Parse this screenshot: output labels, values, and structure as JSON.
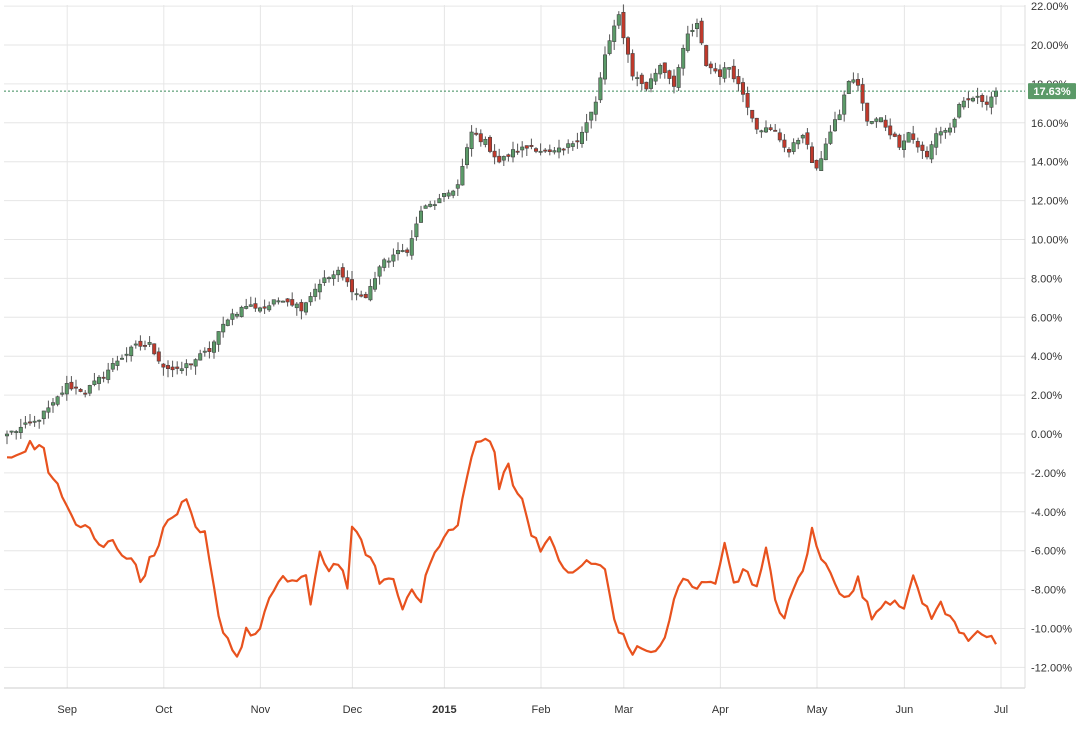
{
  "chart_data": {
    "type": "candlestick+line",
    "title": "",
    "xlabel": "",
    "ylabel": "",
    "ylim": [
      -12.5,
      22.2
    ],
    "y_ticks": [
      "22.00%",
      "20.00%",
      "18.00%",
      "16.00%",
      "14.00%",
      "12.00%",
      "10.00%",
      "8.00%",
      "6.00%",
      "4.00%",
      "2.00%",
      "0.00%",
      "-2.00%",
      "-4.00%",
      "-6.00%",
      "-8.00%",
      "-10.00%",
      "-12.00%"
    ],
    "y_tick_values": [
      22,
      20,
      18,
      16,
      14,
      12,
      10,
      8,
      6,
      4,
      2,
      0,
      -2,
      -4,
      -6,
      -8,
      -10,
      -12
    ],
    "x_ticks": [
      "Sep",
      "Oct",
      "Nov",
      "Dec",
      "2015",
      "Feb",
      "Mar",
      "Apr",
      "May",
      "Jun",
      "Jul"
    ],
    "x_tick_positions": [
      7,
      28,
      49,
      69,
      89,
      110,
      128,
      149,
      170,
      189,
      210
    ],
    "x_bold_tick": "2015",
    "n_days": 216,
    "last_value_label": "17.63%",
    "last_value": 17.63,
    "grid": true,
    "series": [
      {
        "kind": "candlestick",
        "color_up": "#5b9a68",
        "color_down": "#c0392b",
        "anchors": [
          [
            0,
            0
          ],
          [
            6,
            0.6
          ],
          [
            10,
            1.5
          ],
          [
            13,
            2.5
          ],
          [
            17,
            2.2
          ],
          [
            20,
            2.8
          ],
          [
            24,
            3.8
          ],
          [
            28,
            4.5
          ],
          [
            31,
            4.6
          ],
          [
            34,
            3.5
          ],
          [
            37,
            3.2
          ],
          [
            40,
            3.7
          ],
          [
            44,
            4.3
          ],
          [
            48,
            6.0
          ],
          [
            52,
            6.6
          ],
          [
            56,
            6.5
          ],
          [
            60,
            7.0
          ],
          [
            64,
            6.5
          ],
          [
            68,
            7.8
          ],
          [
            72,
            8.3
          ],
          [
            76,
            7.2
          ],
          [
            78,
            7.0
          ],
          [
            81,
            8.6
          ],
          [
            84,
            9.2
          ],
          [
            87,
            9.5
          ],
          [
            88,
            10.0
          ],
          [
            90,
            11.5
          ],
          [
            94,
            12.0
          ],
          [
            98,
            12.8
          ],
          [
            101,
            15.5
          ],
          [
            104,
            15.0
          ],
          [
            107,
            14.0
          ],
          [
            110,
            14.5
          ],
          [
            114,
            14.8
          ],
          [
            118,
            14.4
          ],
          [
            121,
            14.6
          ],
          [
            124,
            15.2
          ],
          [
            126,
            16.0
          ],
          [
            128,
            17.0
          ],
          [
            130,
            19.5
          ],
          [
            133,
            21.5
          ],
          [
            136,
            18.5
          ],
          [
            139,
            17.8
          ],
          [
            142,
            19.0
          ],
          [
            145,
            18.0
          ],
          [
            148,
            20.5
          ],
          [
            150,
            21.0
          ],
          [
            152,
            19.0
          ],
          [
            155,
            18.5
          ],
          [
            157,
            18.9
          ],
          [
            160,
            17.5
          ],
          [
            163,
            15.8
          ],
          [
            167,
            15.5
          ],
          [
            170,
            14.5
          ],
          [
            173,
            15.5
          ],
          [
            175,
            14.0
          ],
          [
            176,
            13.5
          ],
          [
            178,
            15.0
          ],
          [
            181,
            16.5
          ],
          [
            183,
            18.2
          ],
          [
            185,
            18.0
          ],
          [
            187,
            16.0
          ],
          [
            190,
            16.2
          ],
          [
            192,
            15.5
          ],
          [
            194,
            14.9
          ],
          [
            196,
            15.5
          ],
          [
            198,
            14.8
          ],
          [
            200,
            14.2
          ],
          [
            202,
            15.5
          ],
          [
            205,
            15.7
          ],
          [
            207,
            16.8
          ],
          [
            210,
            17.3
          ],
          [
            213,
            17.1
          ],
          [
            215,
            17.63
          ]
        ]
      },
      {
        "kind": "line",
        "color": "#e8521e",
        "anchors": [
          [
            0,
            -1.2
          ],
          [
            2,
            -1.0
          ],
          [
            5,
            -0.5
          ],
          [
            8,
            -0.8
          ],
          [
            9,
            -2.2
          ],
          [
            11,
            -2.5
          ],
          [
            13,
            -3.5
          ],
          [
            15,
            -4.5
          ],
          [
            18,
            -4.8
          ],
          [
            20,
            -5.8
          ],
          [
            23,
            -5.5
          ],
          [
            26,
            -6.3
          ],
          [
            28,
            -6.5
          ],
          [
            29,
            -7.8
          ],
          [
            31,
            -6.5
          ],
          [
            33,
            -5.5
          ],
          [
            35,
            -4.5
          ],
          [
            37,
            -4.0
          ],
          [
            39,
            -3.5
          ],
          [
            41,
            -5.0
          ],
          [
            43,
            -5.2
          ],
          [
            45,
            -8.0
          ],
          [
            46,
            -9.5
          ],
          [
            48,
            -10.5
          ],
          [
            49,
            -11.0
          ],
          [
            50,
            -11.5
          ],
          [
            52,
            -10.0
          ],
          [
            54,
            -10.5
          ],
          [
            57,
            -8.5
          ],
          [
            60,
            -7.5
          ],
          [
            63,
            -7.5
          ],
          [
            65,
            -7.3
          ],
          [
            66,
            -9.0
          ],
          [
            68,
            -6.0
          ],
          [
            70,
            -7.0
          ],
          [
            72,
            -6.5
          ],
          [
            74,
            -7.8
          ],
          [
            75,
            -5.0
          ],
          [
            77,
            -5.5
          ],
          [
            79,
            -6.5
          ],
          [
            81,
            -7.5
          ],
          [
            84,
            -7.5
          ],
          [
            86,
            -9.0
          ],
          [
            88,
            -7.8
          ],
          [
            90,
            -8.5
          ],
          [
            92,
            -6.5
          ],
          [
            94,
            -5.8
          ],
          [
            96,
            -5.0
          ],
          [
            98,
            -4.8
          ],
          [
            100,
            -2.0
          ],
          [
            102,
            -0.5
          ],
          [
            104,
            -0.2
          ],
          [
            106,
            -1.0
          ],
          [
            107,
            -2.8
          ],
          [
            109,
            -1.3
          ],
          [
            110,
            -2.5
          ],
          [
            112,
            -3.5
          ],
          [
            114,
            -5.0
          ],
          [
            116,
            -5.8
          ],
          [
            118,
            -5.5
          ],
          [
            120,
            -6.5
          ],
          [
            123,
            -7.3
          ],
          [
            126,
            -6.5
          ],
          [
            130,
            -7.0
          ],
          [
            132,
            -9.5
          ],
          [
            134,
            -10.5
          ],
          [
            136,
            -11.2
          ],
          [
            139,
            -11.0
          ],
          [
            141,
            -11.3
          ],
          [
            143,
            -10.5
          ],
          [
            145,
            -8.5
          ],
          [
            147,
            -7.5
          ],
          [
            150,
            -8.0
          ],
          [
            152,
            -7.5
          ],
          [
            154,
            -7.5
          ],
          [
            156,
            -5.8
          ],
          [
            158,
            -7.5
          ],
          [
            161,
            -7.0
          ],
          [
            163,
            -8.0
          ],
          [
            165,
            -6.0
          ],
          [
            167,
            -8.5
          ],
          [
            169,
            -9.5
          ],
          [
            171,
            -8.0
          ],
          [
            173,
            -7.0
          ],
          [
            175,
            -5.0
          ],
          [
            177,
            -6.5
          ],
          [
            179,
            -7.0
          ],
          [
            181,
            -8.0
          ],
          [
            183,
            -8.5
          ],
          [
            185,
            -7.5
          ],
          [
            188,
            -9.5
          ],
          [
            190,
            -8.7
          ],
          [
            193,
            -8.5
          ],
          [
            195,
            -8.8
          ],
          [
            197,
            -7.5
          ],
          [
            199,
            -8.6
          ],
          [
            201,
            -9.3
          ],
          [
            203,
            -8.8
          ],
          [
            205,
            -9.5
          ],
          [
            207,
            -10.0
          ],
          [
            209,
            -10.5
          ],
          [
            211,
            -10.0
          ],
          [
            213,
            -10.5
          ],
          [
            215,
            -10.7
          ]
        ]
      }
    ]
  }
}
